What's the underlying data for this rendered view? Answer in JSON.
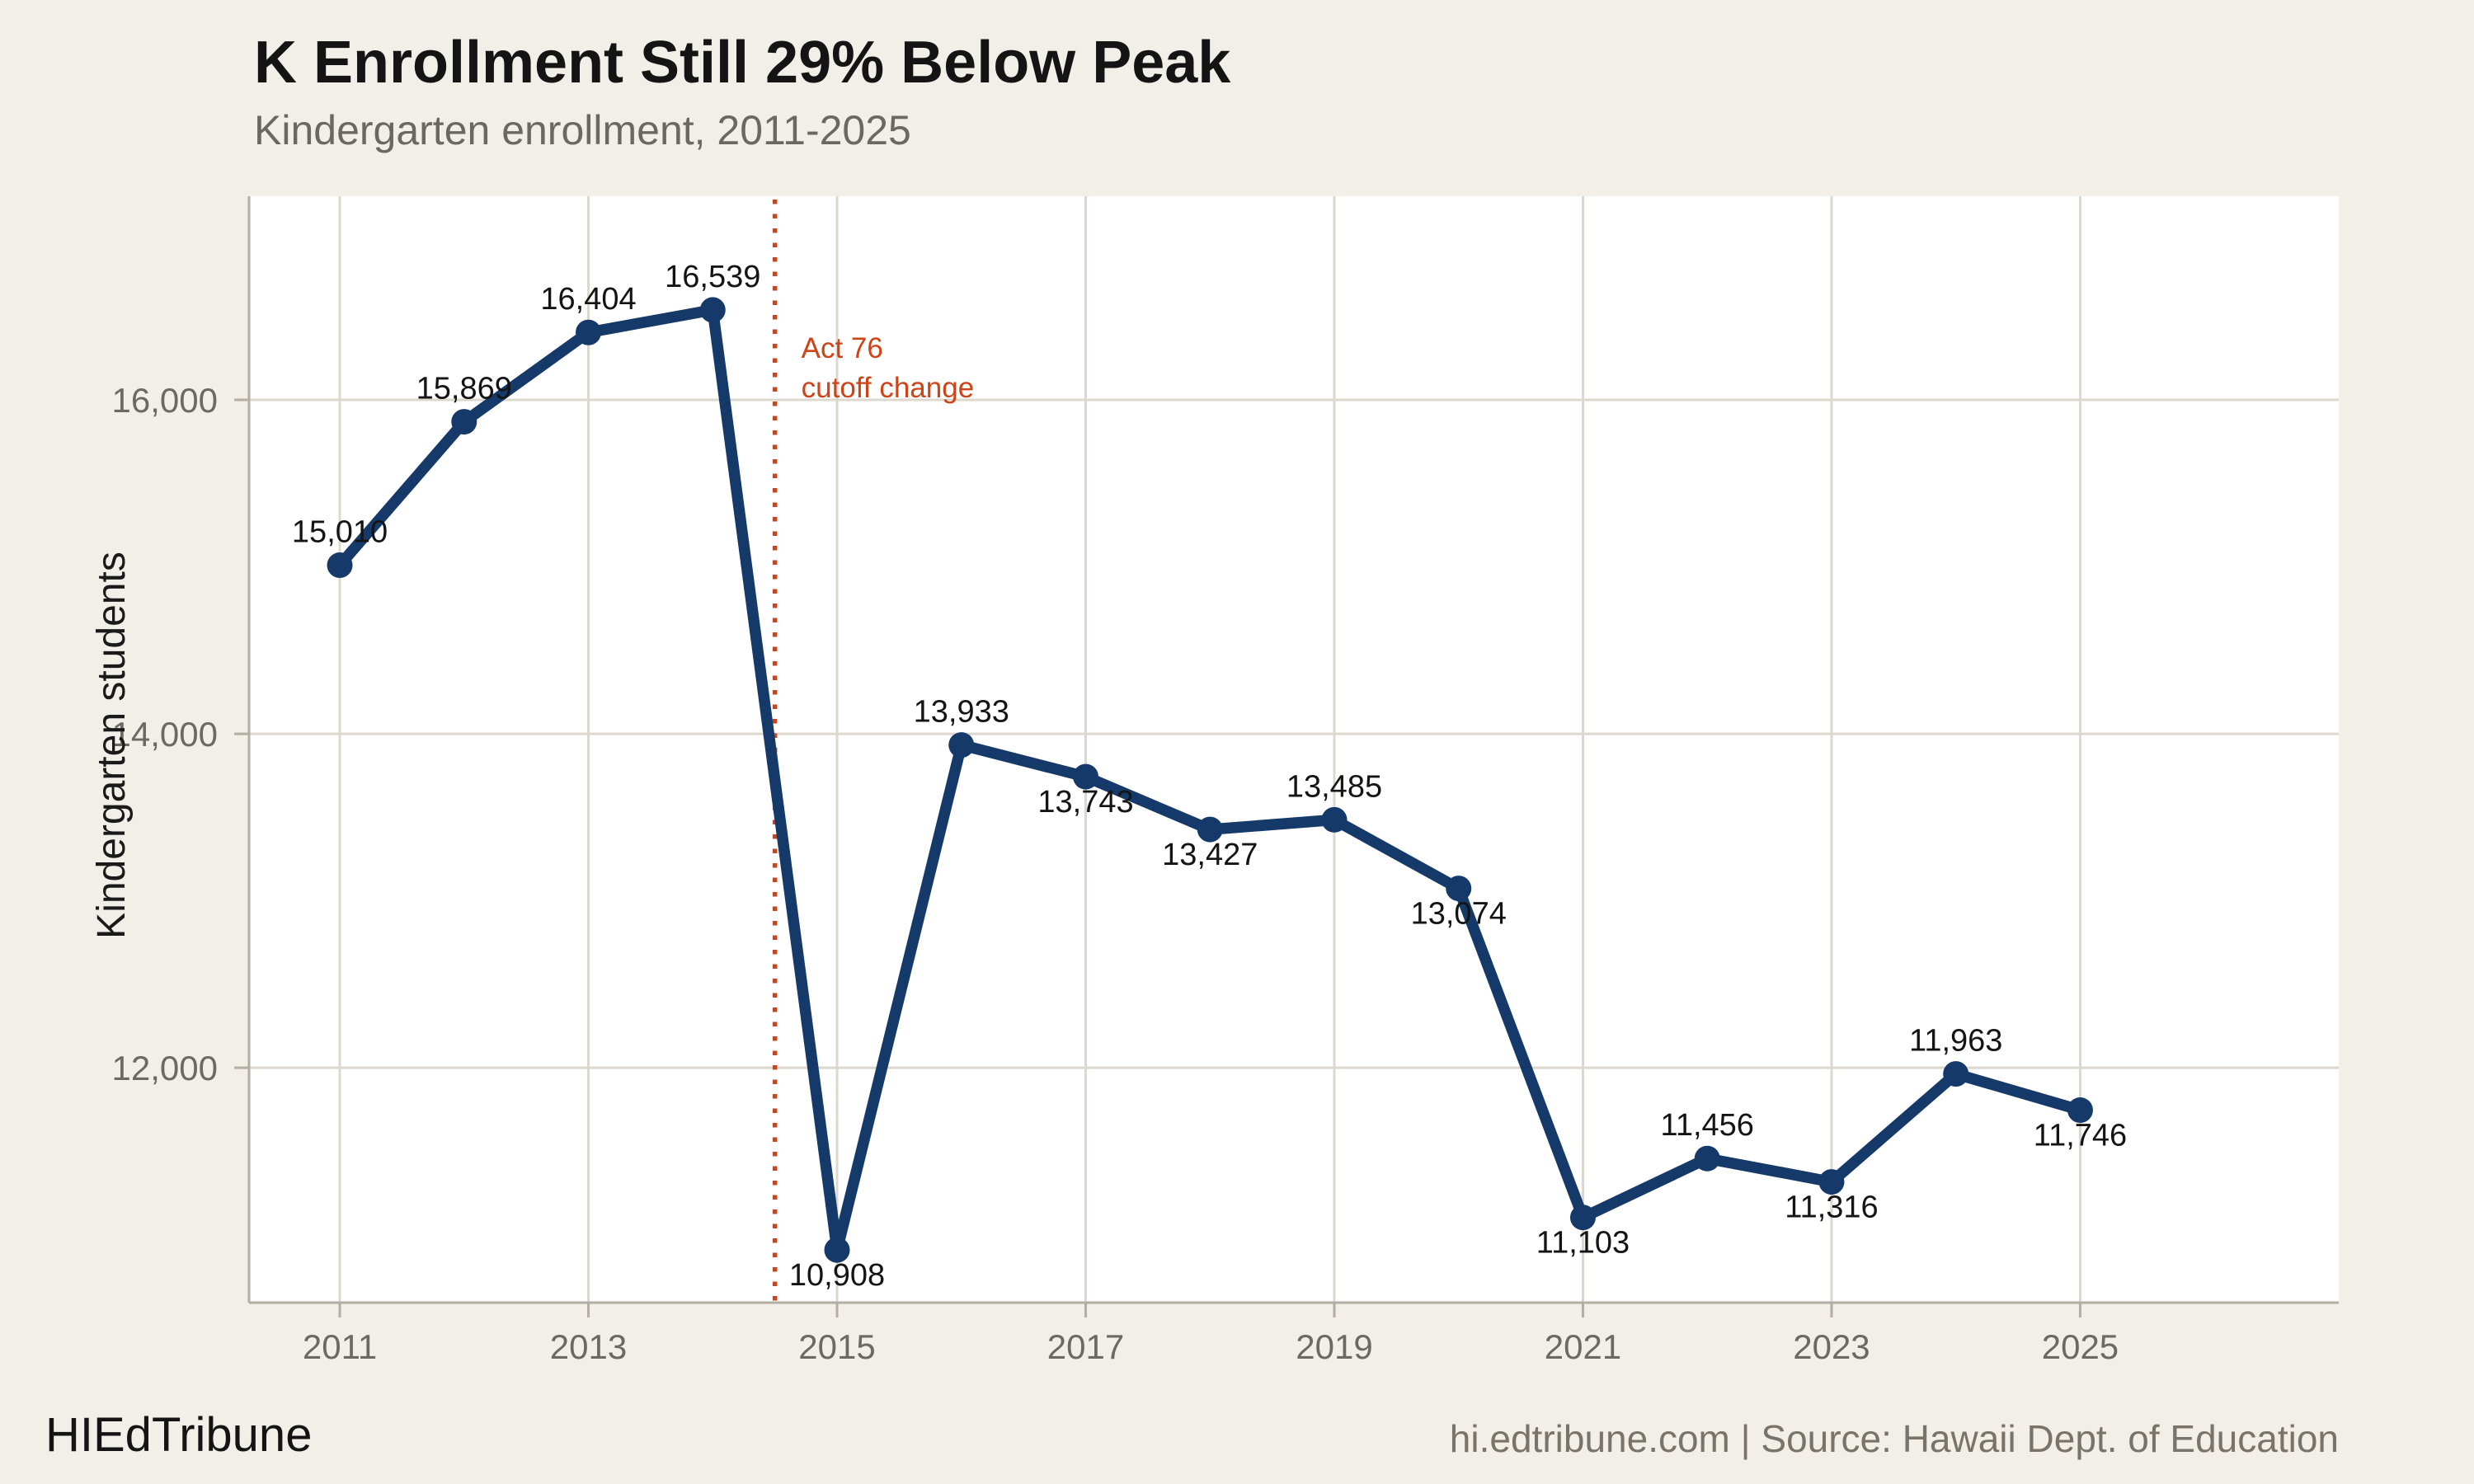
{
  "footer": {
    "brand": "HIEdTribune",
    "source": "hi.edtribune.com | Source: Hawaii Dept. of Education"
  },
  "colors": {
    "background": "#f2efe9",
    "panel": "#ffffff",
    "grid": "#dcd8ce",
    "axis_line": "#b3aea3",
    "axis_text": "#6c6862",
    "line": "#153a6a",
    "point_label_text": "#141414",
    "accent": "#cc4418"
  },
  "chart_data": {
    "type": "line",
    "title": "K Enrollment Still 29% Below Peak",
    "subtitle": "Kindergarten enrollment, 2011-2025",
    "xlabel": "",
    "ylabel": "Kindergarten students",
    "x": [
      2011,
      2012,
      2013,
      2014,
      2015,
      2016,
      2017,
      2018,
      2019,
      2020,
      2021,
      2022,
      2023,
      2024,
      2025
    ],
    "values": [
      15010,
      15869,
      16404,
      16539,
      10908,
      13933,
      13743,
      13427,
      13485,
      13074,
      11103,
      11456,
      11316,
      11963,
      11746
    ],
    "label_placement": [
      "above",
      "above",
      "above",
      "above",
      "below",
      "above",
      "below",
      "below",
      "above",
      "below",
      "below",
      "above",
      "below",
      "above",
      "below"
    ],
    "x_ticks": [
      2011,
      2013,
      2015,
      2017,
      2019,
      2021,
      2023,
      2025
    ],
    "y_ticks": [
      12000,
      14000,
      16000
    ],
    "x_domain": [
      2010.27,
      2027.08
    ],
    "y_domain": [
      10593,
      17220
    ],
    "grid": true,
    "legend": "none",
    "annotation": {
      "x_year": 2014.5,
      "style": "dotted-vertical-line",
      "lines": [
        "Act 76",
        "cutoff change"
      ]
    }
  }
}
